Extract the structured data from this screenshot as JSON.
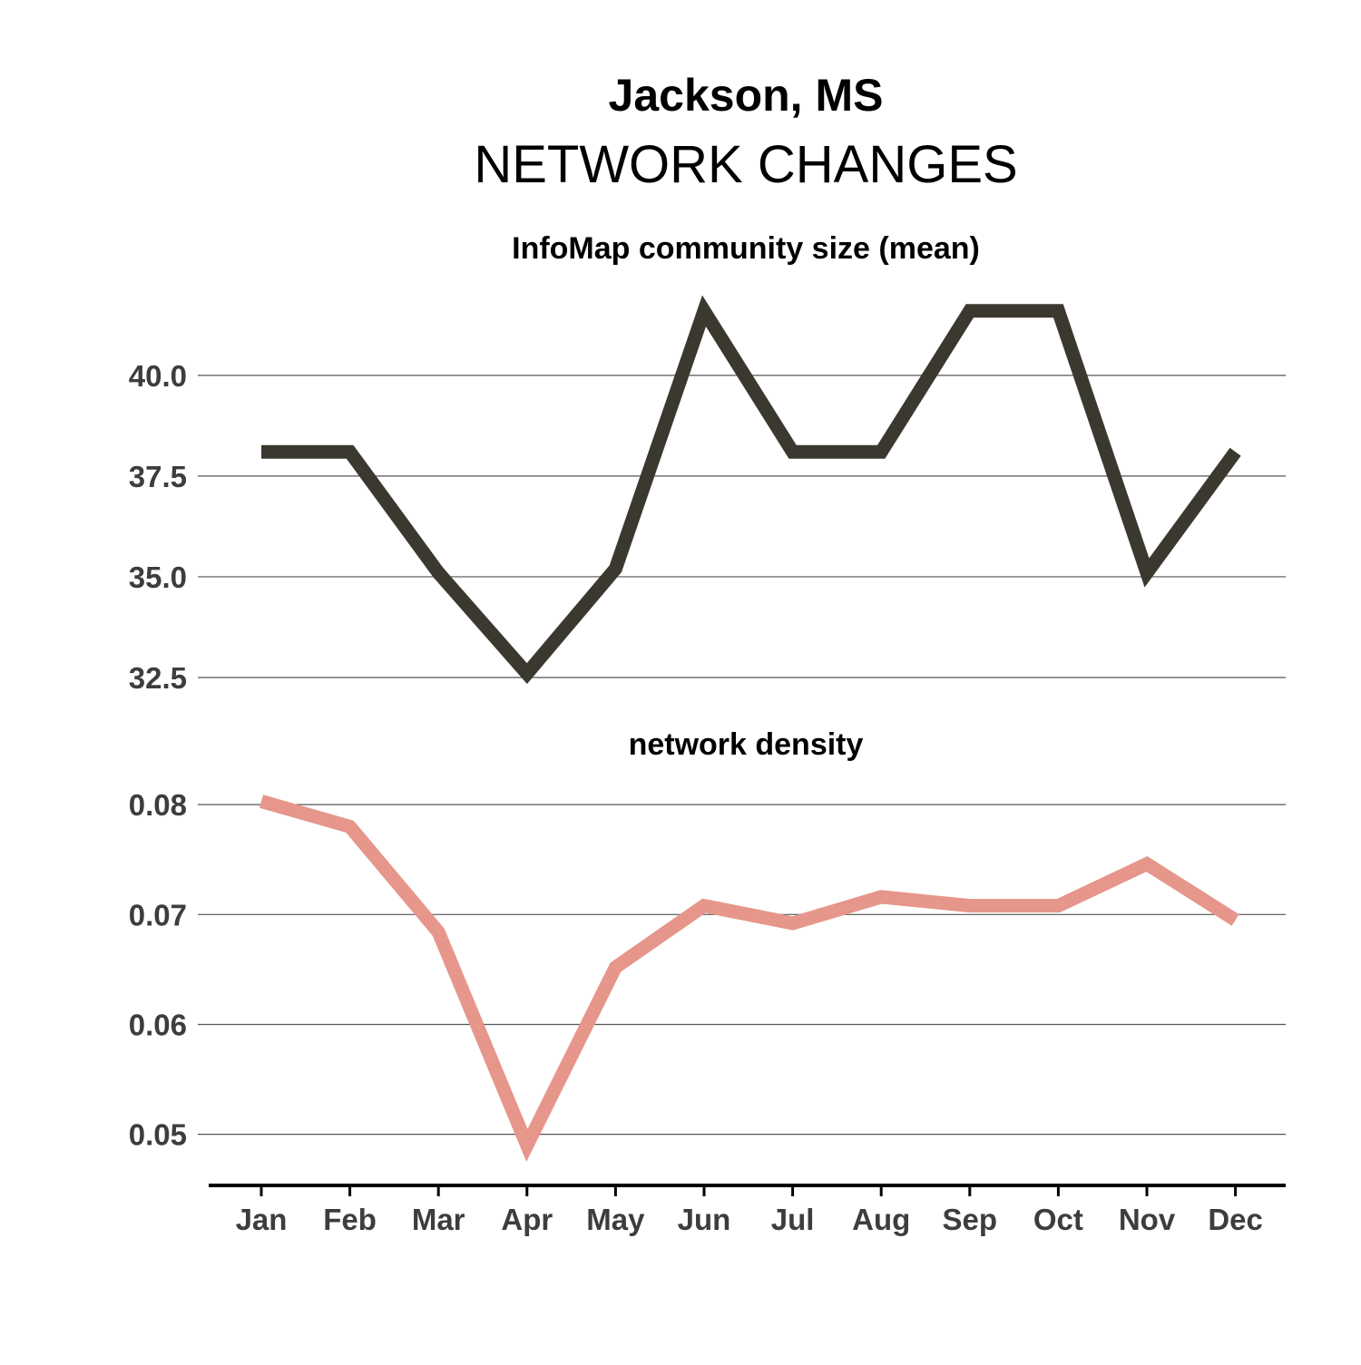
{
  "header": {
    "title": "Jackson, MS",
    "subtitle": "NETWORK CHANGES"
  },
  "chart_data": [
    {
      "type": "line",
      "title": "InfoMap community size (mean)",
      "categories": [
        "Jan",
        "Feb",
        "Mar",
        "Apr",
        "May",
        "Jun",
        "Jul",
        "Aug",
        "Sep",
        "Oct",
        "Nov",
        "Dec"
      ],
      "series": [
        {
          "values": [
            38.1,
            38.1,
            35.1,
            32.6,
            35.2,
            41.6,
            38.1,
            38.1,
            41.6,
            41.6,
            35.1,
            38.1
          ],
          "color": "#3b3830"
        }
      ],
      "yticks": [
        32.5,
        35.0,
        37.5,
        40.0
      ],
      "ytick_labels": [
        "32.5",
        "35.0",
        "37.5",
        "40.0"
      ],
      "ylim": [
        32.5,
        42.0
      ],
      "grid": "horizontal"
    },
    {
      "type": "line",
      "title": "network density",
      "categories": [
        "Jan",
        "Feb",
        "Mar",
        "Apr",
        "May",
        "Jun",
        "Jul",
        "Aug",
        "Sep",
        "Oct",
        "Nov",
        "Dec"
      ],
      "series": [
        {
          "values": [
            0.0803,
            0.078,
            0.0684,
            0.049,
            0.0652,
            0.0708,
            0.0692,
            0.0716,
            0.0708,
            0.0708,
            0.0746,
            0.0695
          ],
          "color": "#e6968a"
        }
      ],
      "yticks": [
        0.05,
        0.06,
        0.07,
        0.08
      ],
      "ytick_labels": [
        "0.05",
        "0.06",
        "0.07",
        "0.08"
      ],
      "ylim": [
        0.047,
        0.081
      ],
      "grid": "horizontal"
    }
  ]
}
